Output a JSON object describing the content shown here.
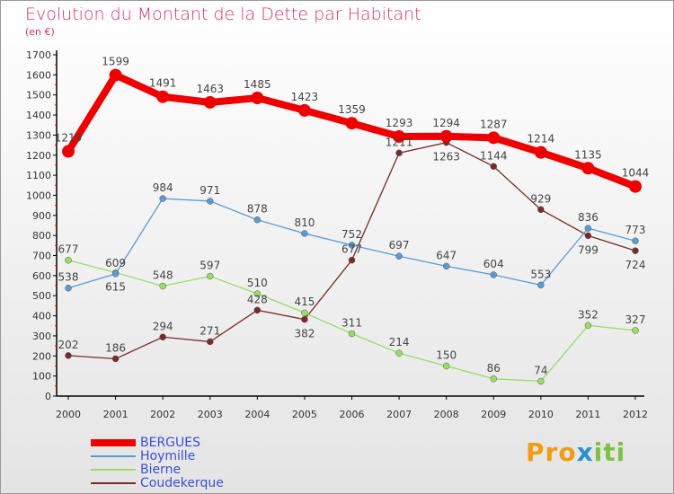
{
  "chart_data": {
    "type": "line",
    "title": "Evolution du Montant de la Dette par Habitant",
    "subtitle": "(en €)",
    "x": [
      "2000",
      "2001",
      "2002",
      "2003",
      "2004",
      "2005",
      "2006",
      "2007",
      "2008",
      "2009",
      "2010",
      "2011",
      "2012"
    ],
    "ylim": [
      0,
      1700
    ],
    "yticks": [
      0,
      100,
      200,
      300,
      400,
      500,
      600,
      700,
      800,
      900,
      1000,
      1100,
      1200,
      1300,
      1400,
      1500,
      1600,
      1700
    ],
    "series": [
      {
        "name": "BERGUES",
        "color": "#ee0000",
        "values": [
          1219,
          1599,
          1491,
          1463,
          1485,
          1423,
          1359,
          1293,
          1294,
          1287,
          1214,
          1135,
          1044
        ]
      },
      {
        "name": "Hoymille",
        "color": "#5b9bd5",
        "values": [
          538,
          609,
          984,
          971,
          878,
          810,
          752,
          697,
          647,
          604,
          553,
          836,
          773
        ]
      },
      {
        "name": "Bierne",
        "color": "#99dd66",
        "values": [
          677,
          615,
          548,
          597,
          510,
          415,
          311,
          214,
          150,
          86,
          74,
          352,
          327
        ]
      },
      {
        "name": "Coudekerque",
        "color": "#7a2a2a",
        "values": [
          202,
          186,
          294,
          271,
          428,
          382,
          677,
          1211,
          1263,
          1144,
          929,
          799,
          724
        ]
      }
    ]
  },
  "logo": "Proxiti"
}
